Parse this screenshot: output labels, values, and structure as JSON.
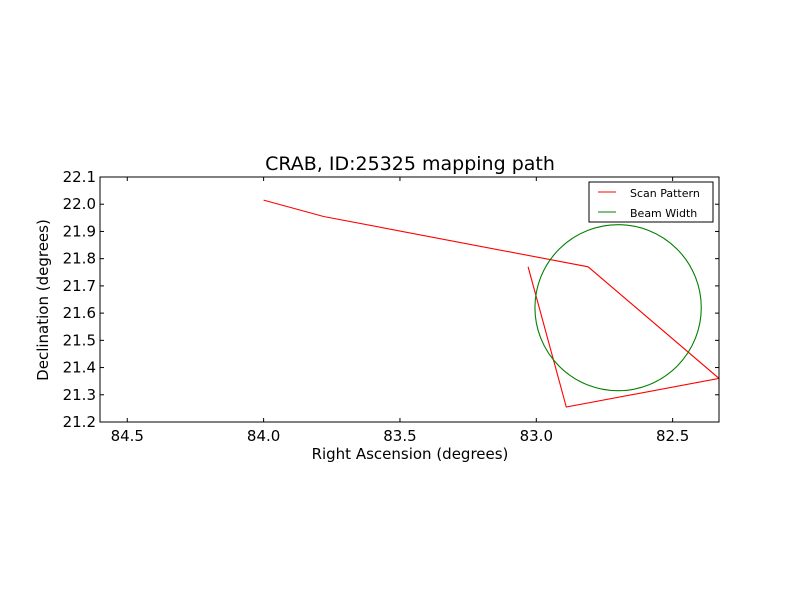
{
  "chart_data": {
    "type": "line",
    "title": "CRAB, ID:25325 mapping path",
    "xlabel": "Right Ascension (degrees)",
    "ylabel": "Declination (degrees)",
    "xlim": [
      84.6,
      82.33
    ],
    "ylim": [
      21.2,
      22.1
    ],
    "x_inverted": true,
    "xticks": [
      84.5,
      84.0,
      83.5,
      83.0,
      82.5
    ],
    "xtick_labels": [
      "84.5",
      "84.0",
      "83.5",
      "83.0",
      "82.5"
    ],
    "yticks": [
      21.2,
      21.3,
      21.4,
      21.5,
      21.6,
      21.7,
      21.8,
      21.9,
      22.0,
      22.1
    ],
    "ytick_labels": [
      "21.2",
      "21.3",
      "21.4",
      "21.5",
      "21.6",
      "21.7",
      "21.8",
      "21.9",
      "22.0",
      "22.1"
    ],
    "grid": false,
    "legend_position": "top-right",
    "series": [
      {
        "name": "Scan Pattern",
        "kind": "line",
        "color": "#ff0000",
        "x": [
          84.0,
          83.78,
          82.81,
          82.33
        ],
        "y": [
          22.015,
          21.955,
          21.77,
          21.36
        ],
        "segments": [
          {
            "x": [
              84.0,
              83.78,
              82.81,
              82.33
            ],
            "y": [
              22.015,
              21.955,
              21.77,
              21.36
            ]
          },
          {
            "x": [
              82.33,
              82.89,
              83.03
            ],
            "y": [
              21.36,
              21.255,
              21.77
            ]
          }
        ]
      },
      {
        "name": "Beam Width",
        "kind": "circle",
        "color": "#008000",
        "center": [
          82.7,
          21.62
        ],
        "radius_ra": 0.305,
        "radius_dec": 0.305
      }
    ]
  }
}
